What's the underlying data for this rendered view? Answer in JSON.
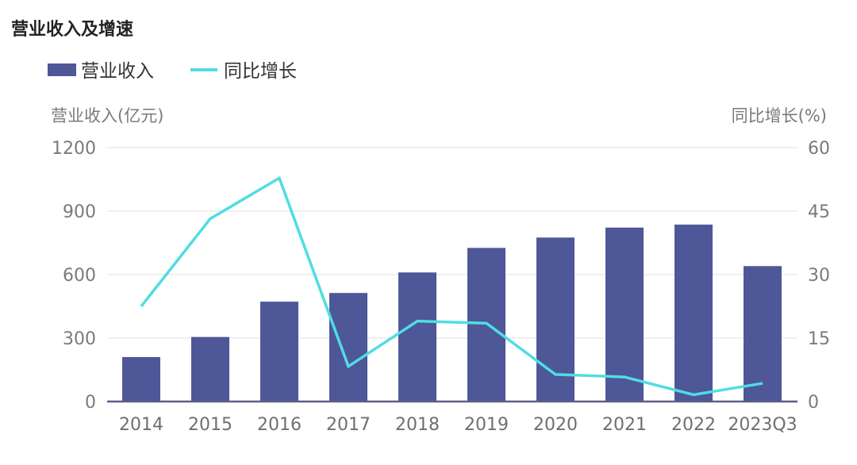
{
  "chart_data": {
    "type": "bar",
    "title": "营业收入及增速",
    "ylabel": "营业收入(亿元)",
    "y2label": "同比增长(%)",
    "categories": [
      "2014",
      "2015",
      "2016",
      "2017",
      "2018",
      "2019",
      "2020",
      "2021",
      "2022",
      "2023Q3"
    ],
    "ylim": [
      0,
      1200
    ],
    "yticks": [
      0,
      300,
      600,
      900,
      1200
    ],
    "y2lim": [
      0,
      60
    ],
    "y2ticks": [
      0,
      15,
      30,
      45,
      60
    ],
    "grid": true,
    "legend_position": "top-left",
    "series": [
      {
        "name": "营业收入",
        "type": "bar",
        "axis": "left",
        "color": "#4e5797",
        "values": [
          210,
          305,
          472,
          513,
          610,
          726,
          775,
          822,
          836,
          640
        ]
      },
      {
        "name": "同比增长",
        "type": "line",
        "axis": "right",
        "color": "#4fdde3",
        "values": [
          22.5,
          43.2,
          52.8,
          8.3,
          19.0,
          18.5,
          6.4,
          5.8,
          1.6,
          4.3
        ]
      }
    ]
  }
}
